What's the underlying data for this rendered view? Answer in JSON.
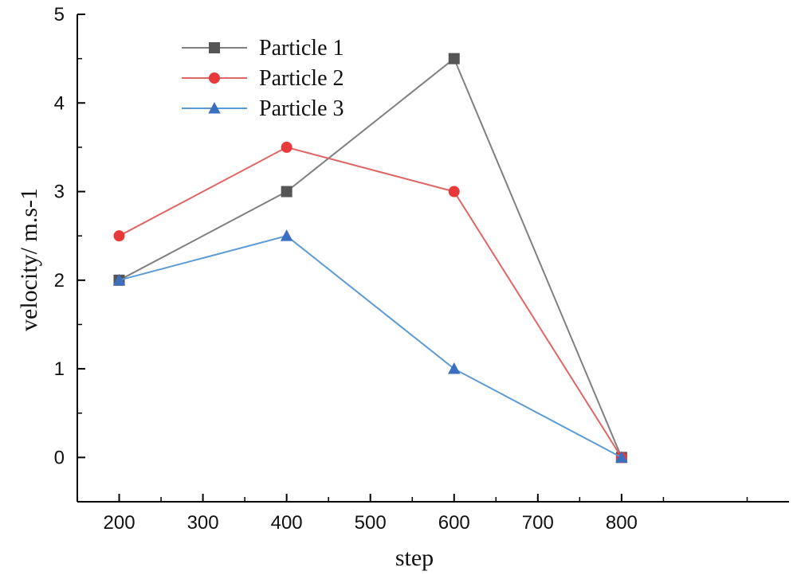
{
  "chart_data": {
    "type": "line",
    "xlabel": "step",
    "ylabel": "velocity/ m.s-1",
    "xlim": [
      150,
      1000
    ],
    "ylim": [
      -0.5,
      5
    ],
    "xticks": [
      200,
      300,
      400,
      500,
      600,
      700,
      800
    ],
    "yticks": [
      0,
      1,
      2,
      3,
      4,
      5
    ],
    "x": [
      200,
      400,
      600,
      800
    ],
    "grid": false,
    "legend": "top-left",
    "series": [
      {
        "name": "Particle 1",
        "values": [
          2,
          3,
          4.5,
          0
        ],
        "color": "#808080",
        "marker": "square",
        "marker_color": "#555555"
      },
      {
        "name": "Particle 2",
        "values": [
          2.5,
          3.5,
          3,
          0
        ],
        "color": "#e06666",
        "marker": "circle",
        "marker_color": "#e8393a"
      },
      {
        "name": "Particle 3",
        "values": [
          2,
          2.5,
          1,
          0
        ],
        "color": "#5b9bd5",
        "marker": "triangle",
        "marker_color": "#3b6fc0"
      }
    ]
  }
}
